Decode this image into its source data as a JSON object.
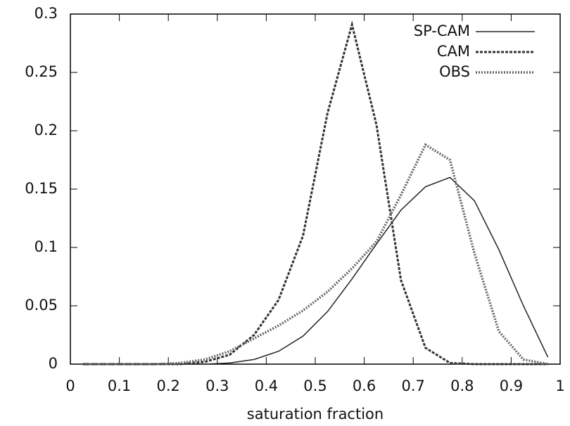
{
  "chart_data": {
    "type": "line",
    "x_label": "saturation fraction",
    "x": [
      0.025,
      0.075,
      0.125,
      0.175,
      0.225,
      0.275,
      0.325,
      0.375,
      0.425,
      0.475,
      0.525,
      0.575,
      0.625,
      0.675,
      0.725,
      0.775,
      0.825,
      0.875,
      0.925,
      0.975
    ],
    "series": [
      {
        "name": "SP-CAM",
        "color": "#222222",
        "style": "solid",
        "values": [
          0,
          0,
          0,
          0,
          0,
          0,
          0.001,
          0.004,
          0.011,
          0.024,
          0.045,
          0.073,
          0.103,
          0.132,
          0.152,
          0.16,
          0.14,
          0.098,
          0.05,
          0.006
        ]
      },
      {
        "name": "CAM",
        "color": "#333333",
        "style": "dashed",
        "values": [
          0,
          0,
          0,
          0,
          0,
          0.002,
          0.008,
          0.025,
          0.055,
          0.11,
          0.215,
          0.291,
          0.205,
          0.072,
          0.014,
          0.001,
          0,
          0,
          0,
          0
        ]
      },
      {
        "name": "OBS",
        "color": "#666666",
        "style": "dotted",
        "values": [
          0,
          0,
          0,
          0,
          0.001,
          0.004,
          0.011,
          0.022,
          0.033,
          0.046,
          0.062,
          0.082,
          0.105,
          0.145,
          0.188,
          0.175,
          0.095,
          0.028,
          0.004,
          0
        ]
      }
    ],
    "xlim": [
      0,
      1
    ],
    "xticks": [
      0,
      0.1,
      0.2,
      0.3,
      0.4,
      0.5,
      0.6,
      0.7,
      0.8,
      0.9,
      1
    ],
    "ylim": [
      0,
      0.3
    ],
    "yticks": [
      0,
      0.05,
      0.1,
      0.15,
      0.2,
      0.25,
      0.3
    ],
    "legend": "top-right"
  }
}
